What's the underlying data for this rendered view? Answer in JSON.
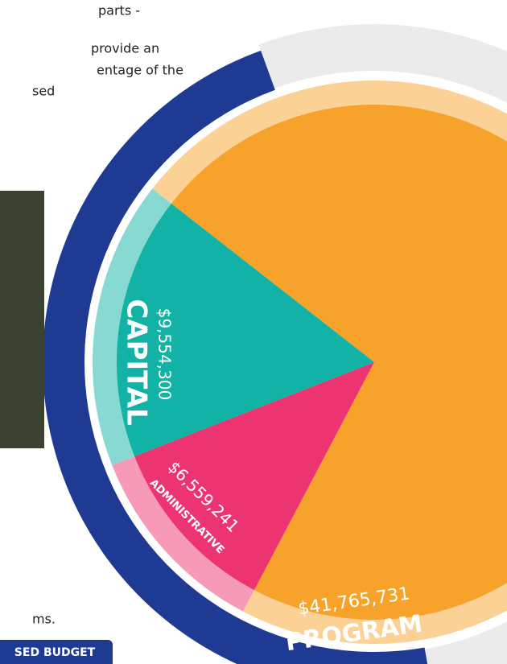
{
  "text_lines": [
    "parts -",
    "provide an",
    "entage of the",
    "sed"
  ],
  "footnote": "ms.",
  "button": "SED BUDGET",
  "chart_data": {
    "type": "pie",
    "categories": [
      "PROGRAM",
      "ADMINISTRATIVE",
      "CAPITAL"
    ],
    "values": [
      41765731,
      6559241,
      9554300
    ],
    "value_labels": [
      "$41,765,731",
      "$6,559,241",
      "$9,554,300"
    ],
    "colors": [
      "#f7a32b",
      "#ec3470",
      "#12b3a6"
    ]
  }
}
